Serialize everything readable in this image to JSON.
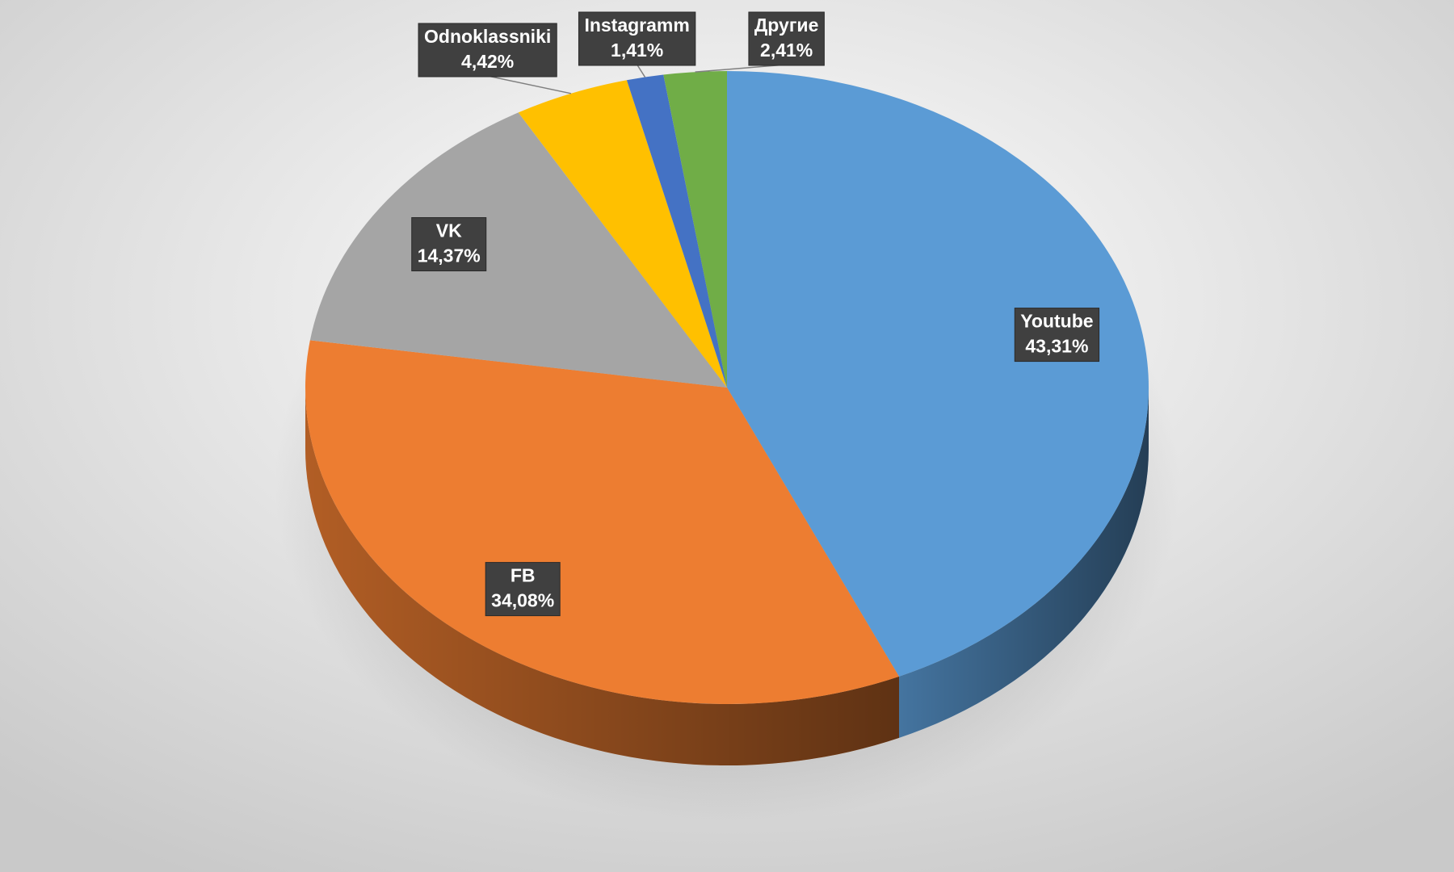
{
  "chart_data": {
    "type": "pie",
    "categories": [
      "Youtube",
      "FB",
      "VK",
      "Odnoklassniki",
      "Instagramm",
      "Другие"
    ],
    "values": [
      43.31,
      34.08,
      14.37,
      4.42,
      1.41,
      2.41
    ],
    "value_labels": [
      "43,31%",
      "34,08%",
      "14,37%",
      "4,42%",
      "1,41%",
      "2,41%"
    ],
    "colors": [
      "#5b9bd5",
      "#ed7d31",
      "#a5a5a5",
      "#ffc000",
      "#4472c4",
      "#70ad47"
    ]
  }
}
